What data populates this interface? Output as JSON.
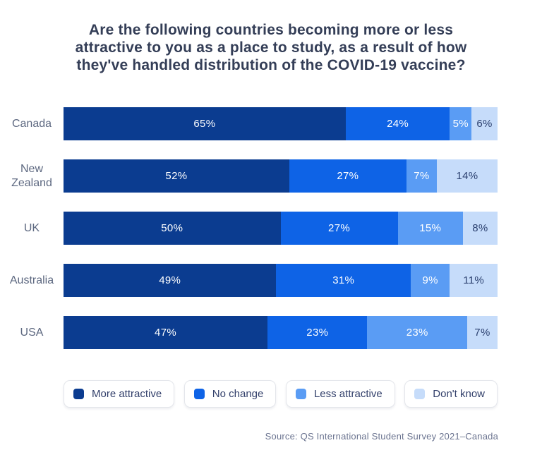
{
  "title_lines": [
    "Are the following countries becoming more or less",
    "attractive to you as a place to study, as a result of how",
    "they've handled distribution of the COVID-19 vaccine?"
  ],
  "source": "Source: QS International Student Survey 2021–Canada",
  "colors": {
    "background": "#ffffff",
    "title_text": "#343e57",
    "category_label_text": "#5d6880",
    "legend_text": "#33406b",
    "legend_border": "#e4e6eb",
    "source_text": "#6b7490",
    "more_attractive": "#0b3c90",
    "no_change": "#0e63e6",
    "less_attractive": "#5a9cf4",
    "dont_know": "#c6dcfa"
  },
  "chart_data": {
    "type": "bar",
    "orientation": "horizontal",
    "stacked": true,
    "title": "Are the following countries becoming more or less attractive to you as a place to study, as a result of how they've handled distribution of the COVID-19 vaccine?",
    "categories": [
      "Canada",
      "New Zealand",
      "UK",
      "Australia",
      "USA"
    ],
    "series": [
      {
        "name": "More attractive",
        "color": "#0b3c90",
        "text_color": "#ffffff",
        "values": [
          65,
          52,
          50,
          49,
          47
        ]
      },
      {
        "name": "No change",
        "color": "#0e63e6",
        "text_color": "#ffffff",
        "values": [
          24,
          27,
          27,
          31,
          23
        ]
      },
      {
        "name": "Less attractive",
        "color": "#5a9cf4",
        "text_color": "#ffffff",
        "values": [
          5,
          7,
          15,
          9,
          23
        ]
      },
      {
        "name": "Don't know",
        "color": "#c6dcfa",
        "text_color": "#2c4170",
        "values": [
          6,
          14,
          8,
          11,
          7
        ]
      }
    ],
    "xlim": [
      0,
      100
    ],
    "value_suffix": "%",
    "grid": false,
    "legend_position": "bottom"
  }
}
